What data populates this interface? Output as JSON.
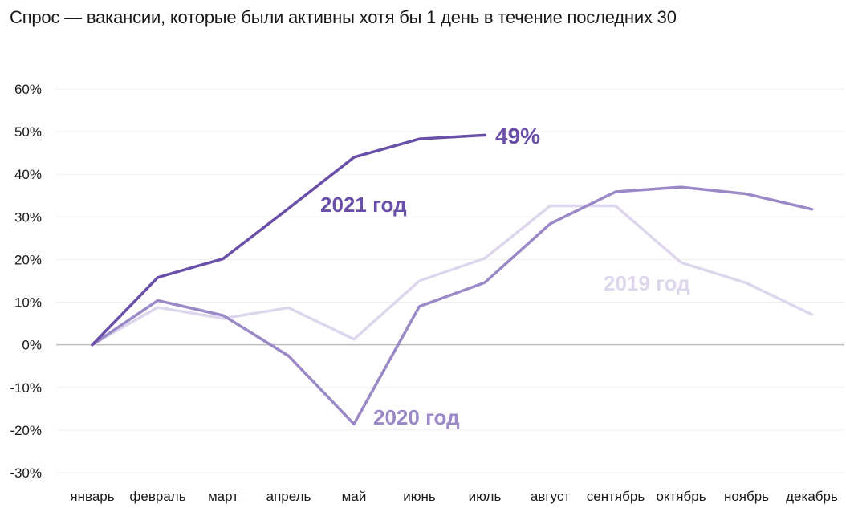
{
  "chart_data": {
    "type": "line",
    "title": "Спрос — вакансии, которые были активны хотя бы 1 день в течение последних 30",
    "xlabel": "",
    "ylabel": "",
    "categories": [
      "январь",
      "февраль",
      "март",
      "апрель",
      "май",
      "июнь",
      "июль",
      "август",
      "сентябрь",
      "октябрь",
      "ноябрь",
      "декабрь"
    ],
    "ylim": [
      -30,
      60
    ],
    "yticks": [
      60,
      50,
      40,
      30,
      20,
      10,
      0,
      -10,
      -20,
      -30
    ],
    "ytick_labels": [
      "60%",
      "50%",
      "40%",
      "30%",
      "20%",
      "10%",
      "0%",
      "-10%",
      "-20%",
      "-30%"
    ],
    "grid": true,
    "legend": "inline labels",
    "series": [
      {
        "name": "2019 год",
        "color": "#ddd6ec",
        "values": [
          0,
          8.8,
          6.2,
          8.7,
          1.3,
          15.0,
          20.3,
          32.6,
          32.6,
          19.3,
          14.5,
          7.1
        ]
      },
      {
        "name": "2020 год",
        "color": "#9b88c6",
        "values": [
          0,
          10.4,
          6.9,
          -2.6,
          -18.6,
          9.0,
          14.6,
          28.4,
          35.9,
          37.0,
          35.4,
          31.8
        ]
      },
      {
        "name": "2021 год",
        "color": "#6a4fa8",
        "values": [
          0,
          15.8,
          20.2,
          32.0,
          44.0,
          48.3,
          49.2,
          null,
          null,
          null,
          null,
          null
        ]
      }
    ],
    "annotations": [
      {
        "text": "49%",
        "series": "2021 год",
        "category": "июль",
        "value": 49.2
      }
    ]
  }
}
